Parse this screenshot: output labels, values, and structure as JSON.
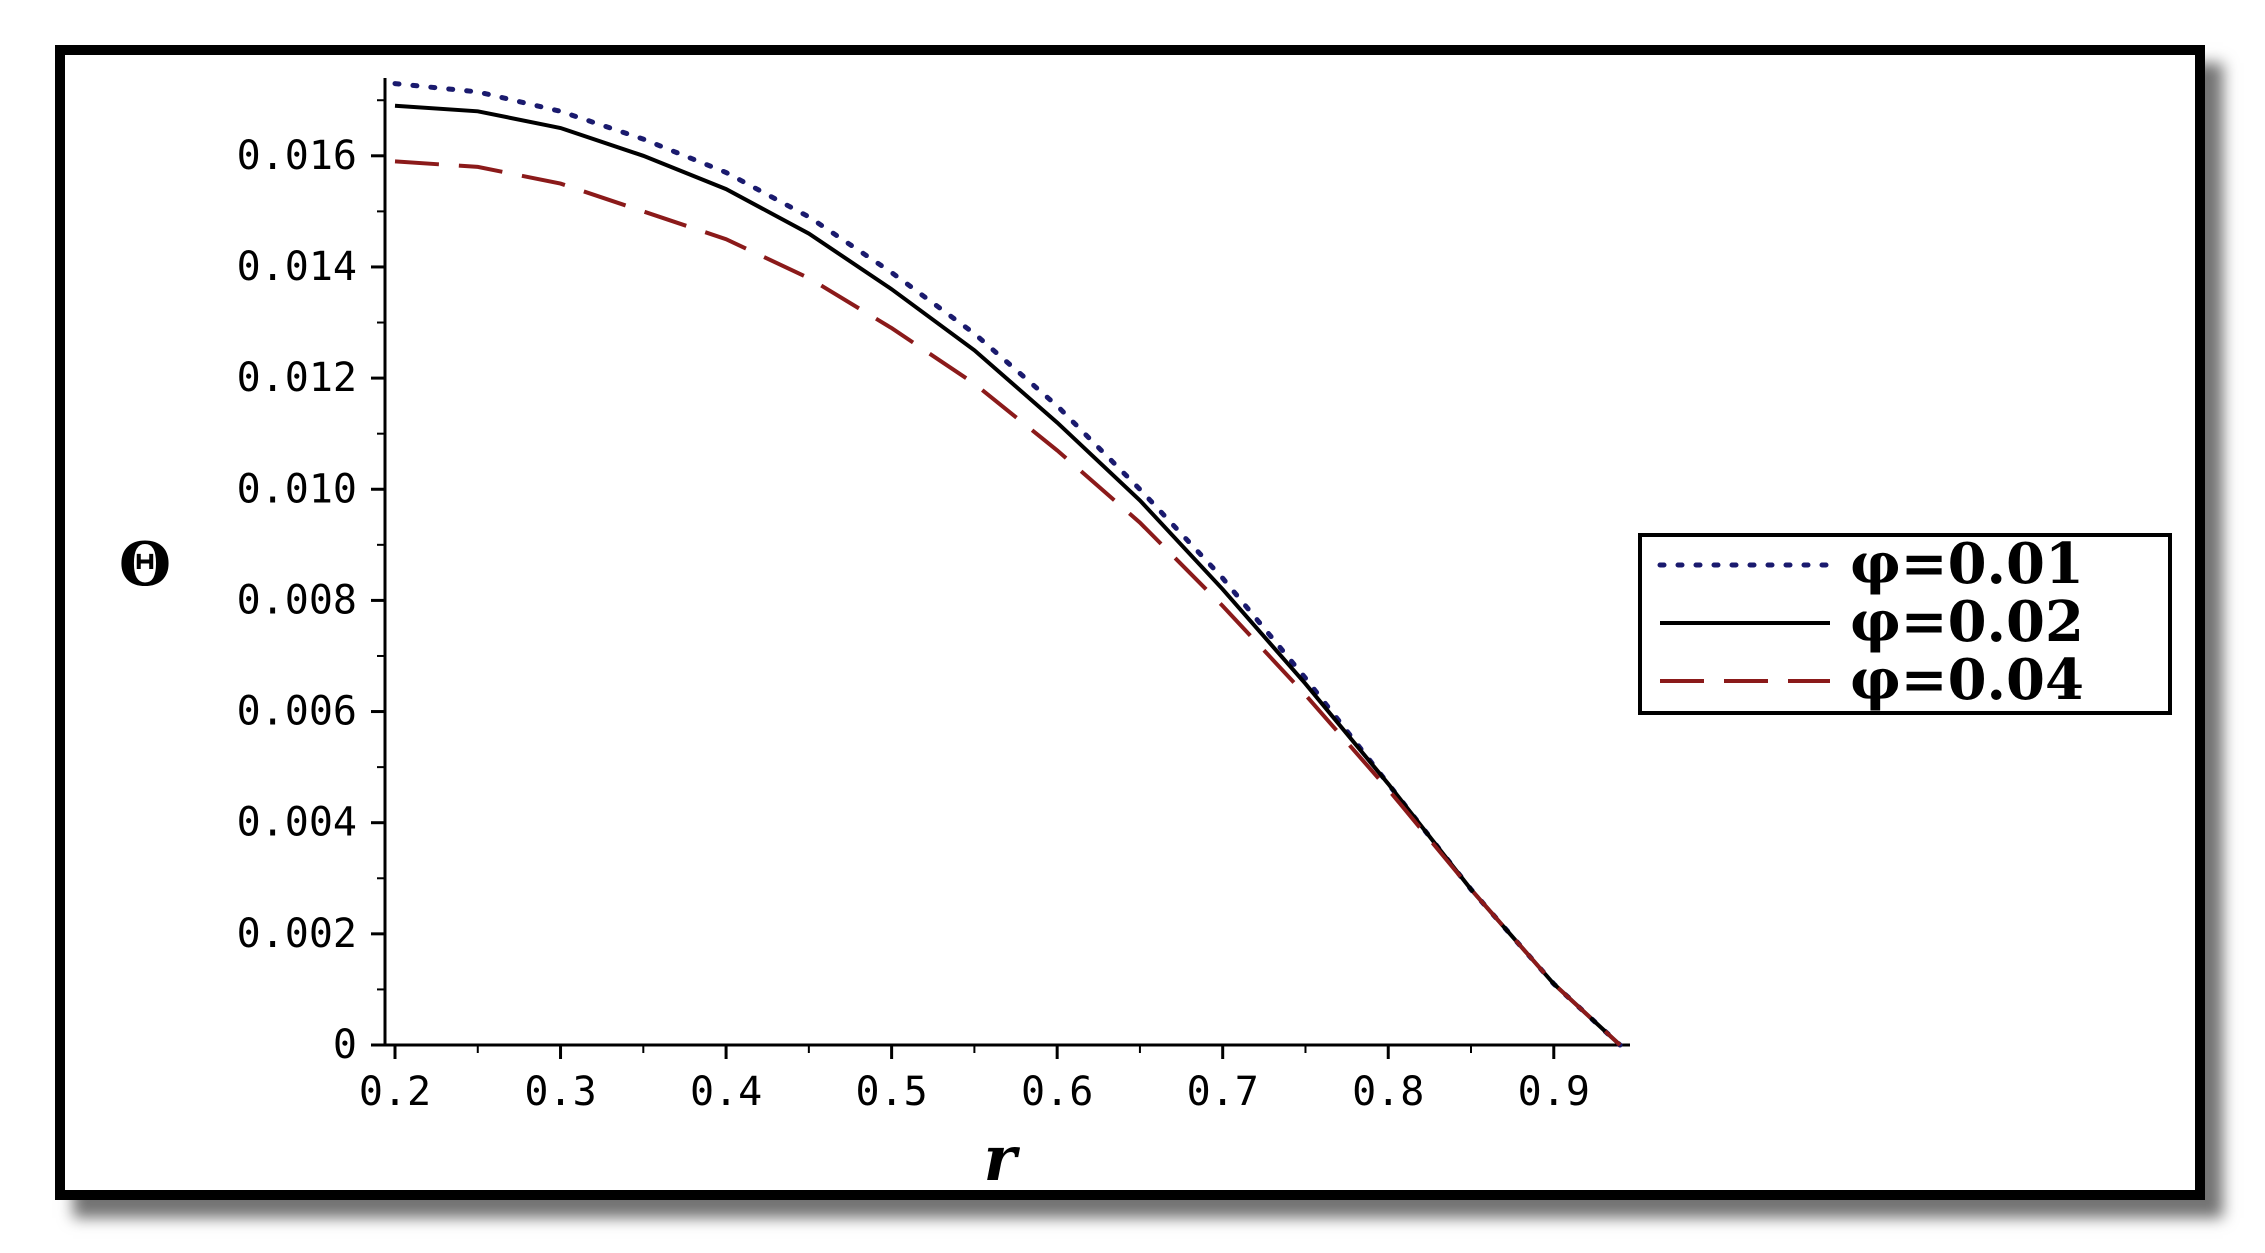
{
  "chart_data": {
    "type": "line",
    "title": "",
    "xlabel": "r",
    "ylabel": "Θ",
    "xlim": [
      0.2,
      0.94
    ],
    "ylim": [
      0,
      0.0174
    ],
    "x_ticks": [
      "0.2",
      "0.3",
      "0.4",
      "0.5",
      "0.6",
      "0.7",
      "0.8",
      "0.9"
    ],
    "y_ticks": [
      "0",
      "0.002",
      "0.004",
      "0.006",
      "0.008",
      "0.010",
      "0.012",
      "0.014",
      "0.016"
    ],
    "legend_position": "right",
    "grid": false,
    "x": [
      0.2,
      0.25,
      0.3,
      0.35,
      0.4,
      0.45,
      0.5,
      0.55,
      0.6,
      0.65,
      0.7,
      0.75,
      0.8,
      0.85,
      0.9,
      0.94
    ],
    "series": [
      {
        "name": "φ=0.01",
        "color": "#1a1a6e",
        "style": "dotted",
        "values": [
          0.0173,
          0.01715,
          0.0168,
          0.0163,
          0.0157,
          0.0149,
          0.0139,
          0.0128,
          0.0115,
          0.01,
          0.0084,
          0.0066,
          0.0047,
          0.0028,
          0.0011,
          0.0
        ]
      },
      {
        "name": "φ=0.02",
        "color": "#000000",
        "style": "solid",
        "values": [
          0.0169,
          0.0168,
          0.0165,
          0.016,
          0.0154,
          0.0146,
          0.0136,
          0.0125,
          0.0112,
          0.0098,
          0.0082,
          0.0065,
          0.0047,
          0.0028,
          0.0011,
          0.0
        ]
      },
      {
        "name": "φ=0.04",
        "color": "#8b1a1a",
        "style": "dashed",
        "values": [
          0.0159,
          0.0158,
          0.0155,
          0.015,
          0.0145,
          0.0138,
          0.0129,
          0.0119,
          0.0107,
          0.0094,
          0.0079,
          0.0063,
          0.0046,
          0.0028,
          0.0011,
          0.0
        ]
      }
    ]
  }
}
